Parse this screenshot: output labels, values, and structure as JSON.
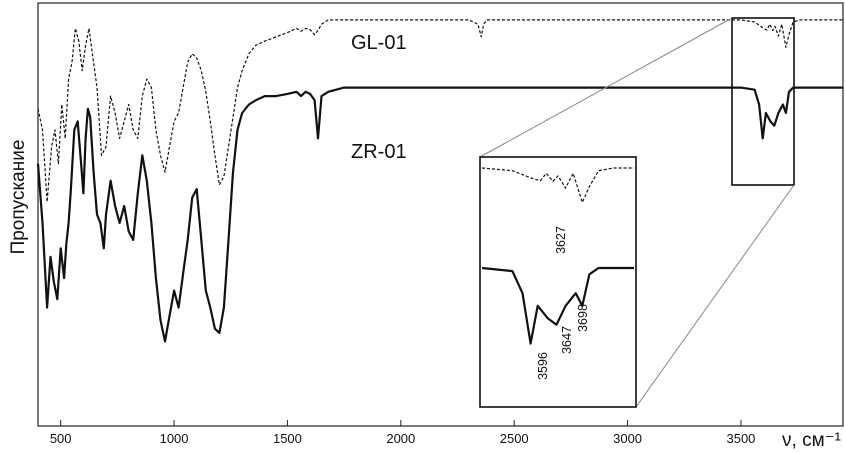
{
  "chart_data": {
    "type": "line",
    "title": "",
    "xlabel": "ν, см⁻¹",
    "ylabel": "Пропускание",
    "xlim": [
      400,
      3950
    ],
    "xticks": [
      500,
      1000,
      1500,
      2000,
      2500,
      3000,
      3500
    ],
    "x_tick_labels": [
      "500",
      "1000",
      "1500",
      "2000",
      "2500",
      "3000",
      "3500"
    ],
    "ylim": [
      0,
      100
    ],
    "y_ticks_shown": false,
    "grid": false,
    "legend": "none",
    "series": [
      {
        "name": "GL-01",
        "style": "dashed",
        "x": [
          400,
          420,
          440,
          460,
          475,
          490,
          505,
          520,
          535,
          550,
          565,
          580,
          595,
          610,
          625,
          640,
          660,
          680,
          700,
          720,
          740,
          760,
          780,
          800,
          820,
          840,
          860,
          880,
          900,
          920,
          940,
          960,
          980,
          1000,
          1020,
          1040,
          1060,
          1080,
          1100,
          1120,
          1140,
          1160,
          1180,
          1200,
          1220,
          1240,
          1260,
          1280,
          1300,
          1330,
          1360,
          1400,
          1450,
          1500,
          1540,
          1560,
          1580,
          1600,
          1620,
          1635,
          1650,
          1680,
          1750,
          1900,
          2100,
          2300,
          2340,
          2355,
          2365,
          2380,
          2420,
          2600,
          2800,
          3000,
          3200,
          3400,
          3500,
          3560,
          3600,
          3615,
          3627,
          3640,
          3650,
          3665,
          3680,
          3698,
          3712,
          3730,
          3760,
          3800,
          3950
        ],
        "y": [
          75,
          70,
          53,
          66,
          70,
          62,
          76,
          68,
          82,
          86,
          94,
          91,
          84,
          90,
          94,
          88,
          80,
          64,
          66,
          78,
          74,
          68,
          72,
          76,
          70,
          68,
          78,
          82,
          80,
          70,
          64,
          60,
          66,
          72,
          74,
          80,
          86,
          88,
          87,
          84,
          79,
          72,
          64,
          57,
          59,
          66,
          73,
          80,
          84,
          88,
          90,
          91,
          92,
          93,
          94,
          93.3,
          94,
          93.7,
          92.5,
          93.5,
          95,
          96,
          96,
          96,
          96,
          96,
          95,
          92,
          95,
          96,
          96,
          96,
          96,
          96,
          96,
          96,
          96,
          95.5,
          94,
          93.6,
          95,
          93.5,
          94.5,
          92.2,
          95,
          89.5,
          92.5,
          95.5,
          96,
          96,
          96
        ]
      },
      {
        "name": "ZR-01",
        "style": "solid",
        "x": [
          400,
          420,
          440,
          455,
          470,
          485,
          500,
          515,
          525,
          535,
          545,
          560,
          575,
          590,
          600,
          610,
          620,
          630,
          645,
          660,
          675,
          690,
          700,
          720,
          740,
          760,
          780,
          800,
          820,
          840,
          860,
          880,
          900,
          920,
          940,
          960,
          980,
          1000,
          1020,
          1040,
          1060,
          1080,
          1100,
          1120,
          1140,
          1160,
          1180,
          1200,
          1220,
          1240,
          1260,
          1280,
          1300,
          1330,
          1360,
          1400,
          1450,
          1500,
          1540,
          1560,
          1580,
          1600,
          1620,
          1635,
          1650,
          1680,
          1750,
          2000,
          2500,
          3000,
          3400,
          3500,
          3560,
          3580,
          3596,
          3610,
          3630,
          3647,
          3665,
          3685,
          3698,
          3712,
          3730,
          3760,
          3800,
          3950
        ],
        "y": [
          62,
          48,
          28,
          40,
          34,
          30,
          42,
          35,
          43,
          48,
          56,
          70,
          72,
          62,
          55,
          68,
          75,
          73,
          60,
          50,
          48,
          42,
          50,
          58,
          52,
          48,
          52,
          46,
          44,
          55,
          64,
          58,
          48,
          35,
          25,
          20,
          26,
          32,
          28,
          36,
          44,
          54,
          56,
          44,
          32,
          28,
          23,
          22,
          28,
          44,
          60,
          70,
          74,
          76,
          77,
          78,
          78,
          78.5,
          79,
          78,
          79,
          78.5,
          77,
          68,
          78,
          79,
          80,
          80,
          80,
          80,
          80,
          80,
          79.5,
          76,
          68,
          74,
          72,
          71,
          74,
          76,
          74,
          79,
          80,
          80,
          80,
          80
        ]
      }
    ],
    "series_labels": [
      "GL-01",
      "ZR-01"
    ],
    "inset": {
      "x_range": [
        3500,
        3800
      ],
      "annotations_top": [
        "3627"
      ],
      "annotations_bottom": [
        "3596",
        "3647",
        "3698"
      ]
    }
  }
}
